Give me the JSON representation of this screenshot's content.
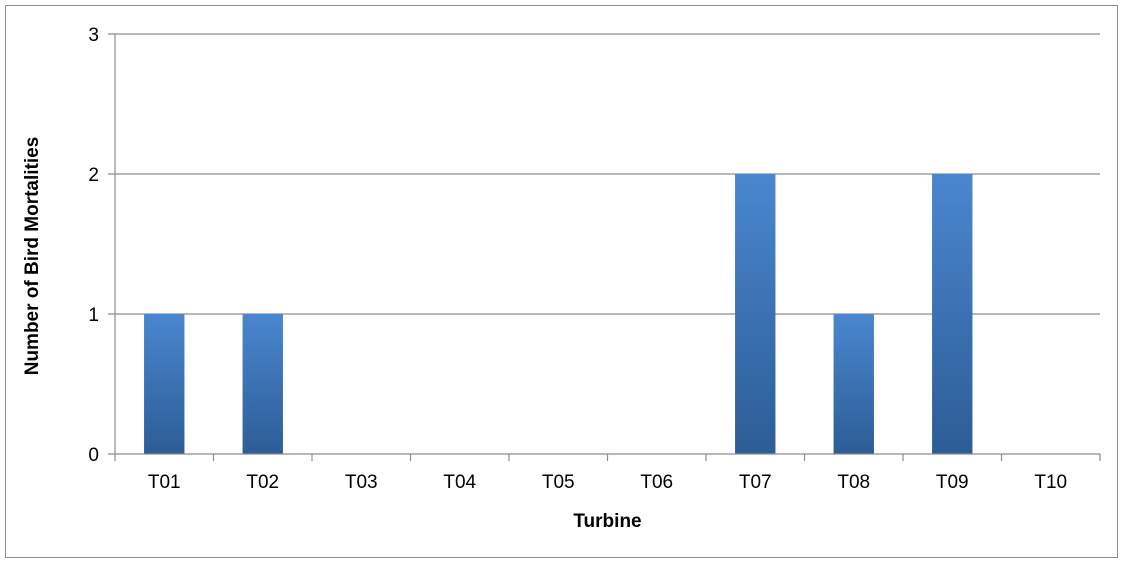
{
  "chart_data": {
    "type": "bar",
    "categories": [
      "T01",
      "T02",
      "T03",
      "T04",
      "T05",
      "T06",
      "T07",
      "T08",
      "T09",
      "T10"
    ],
    "values": [
      1,
      1,
      0,
      0,
      0,
      0,
      2,
      1,
      2,
      0
    ],
    "title": "",
    "xlabel": "Turbine",
    "ylabel": "Number of Bird Mortalities",
    "ylim": [
      0,
      3
    ],
    "yticks": [
      0,
      1,
      2,
      3
    ],
    "grid": true,
    "legend": "none",
    "colors": {
      "bar_top": "#4a86cf",
      "bar_bottom": "#2c5d96",
      "gridline": "#8c8c8c",
      "axis": "#8c8c8c"
    }
  }
}
